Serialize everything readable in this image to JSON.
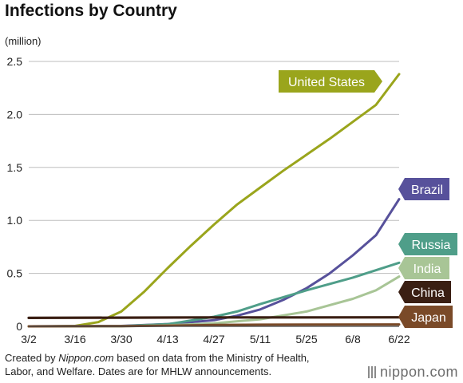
{
  "chart_data": {
    "type": "line",
    "title": "Infections by Country",
    "ylabel": "(million)",
    "xlabel": "",
    "x_ticks": [
      "3/2",
      "3/16",
      "3/30",
      "4/13",
      "4/27",
      "5/11",
      "5/25",
      "6/8",
      "6/22"
    ],
    "y_ticks": [
      "0",
      "0.5",
      "1.0",
      "1.5",
      "2.0",
      "2.5"
    ],
    "ylim": [
      0,
      2.5
    ],
    "xlim": [
      "3/2",
      "6/22"
    ],
    "grid": true,
    "legend": "direct labels at line ends (right)",
    "series": [
      {
        "name": "United States",
        "color": "#9aa51c",
        "points": [
          [
            "3/2",
            0
          ],
          [
            "3/9",
            0.0
          ],
          [
            "3/16",
            0.004
          ],
          [
            "3/23",
            0.04
          ],
          [
            "3/30",
            0.14
          ],
          [
            "4/6",
            0.33
          ],
          [
            "4/13",
            0.55
          ],
          [
            "4/20",
            0.76
          ],
          [
            "4/27",
            0.96
          ],
          [
            "5/4",
            1.15
          ],
          [
            "5/11",
            1.31
          ],
          [
            "5/18",
            1.47
          ],
          [
            "5/25",
            1.62
          ],
          [
            "6/1",
            1.77
          ],
          [
            "6/8",
            1.93
          ],
          [
            "6/15",
            2.09
          ],
          [
            "6/22",
            2.38
          ]
        ]
      },
      {
        "name": "Brazil",
        "color": "#57519b",
        "points": [
          [
            "3/2",
            0
          ],
          [
            "3/30",
            0.004
          ],
          [
            "4/13",
            0.022
          ],
          [
            "4/27",
            0.058
          ],
          [
            "5/4",
            0.1
          ],
          [
            "5/11",
            0.16
          ],
          [
            "5/18",
            0.25
          ],
          [
            "5/25",
            0.36
          ],
          [
            "6/1",
            0.5
          ],
          [
            "6/8",
            0.67
          ],
          [
            "6/15",
            0.86
          ],
          [
            "6/22",
            1.2
          ]
        ]
      },
      {
        "name": "Russia",
        "color": "#4f9e89",
        "points": [
          [
            "3/2",
            0
          ],
          [
            "3/30",
            0.002
          ],
          [
            "4/13",
            0.02
          ],
          [
            "4/27",
            0.09
          ],
          [
            "5/4",
            0.14
          ],
          [
            "5/11",
            0.21
          ],
          [
            "5/25",
            0.34
          ],
          [
            "6/8",
            0.46
          ],
          [
            "6/22",
            0.6
          ]
        ]
      },
      {
        "name": "India",
        "color": "#a8c596",
        "points": [
          [
            "3/2",
            0
          ],
          [
            "3/30",
            0.001
          ],
          [
            "4/13",
            0.01
          ],
          [
            "4/27",
            0.028
          ],
          [
            "5/11",
            0.067
          ],
          [
            "5/25",
            0.14
          ],
          [
            "6/8",
            0.26
          ],
          [
            "6/15",
            0.34
          ],
          [
            "6/22",
            0.47
          ]
        ]
      },
      {
        "name": "China",
        "color": "#3a1f13",
        "points": [
          [
            "3/2",
            0.08
          ],
          [
            "3/30",
            0.082
          ],
          [
            "4/27",
            0.084
          ],
          [
            "5/25",
            0.084
          ],
          [
            "6/22",
            0.085
          ]
        ]
      },
      {
        "name": "Japan",
        "color": "#7a4a28",
        "points": [
          [
            "3/2",
            0.0
          ],
          [
            "3/30",
            0.002
          ],
          [
            "4/13",
            0.007
          ],
          [
            "4/27",
            0.013
          ],
          [
            "5/11",
            0.016
          ],
          [
            "5/25",
            0.017
          ],
          [
            "6/22",
            0.018
          ]
        ]
      }
    ]
  },
  "footer": {
    "line1_prefix": "Created by ",
    "line1_italic": "Nippon.com",
    "line1_suffix": " based on data from the Ministry of Health,",
    "line2": "Labor, and Welfare. Dates are for MHLW announcements."
  },
  "logo": {
    "text": "nippon.com",
    "icon": "nippon-logo-icon"
  }
}
